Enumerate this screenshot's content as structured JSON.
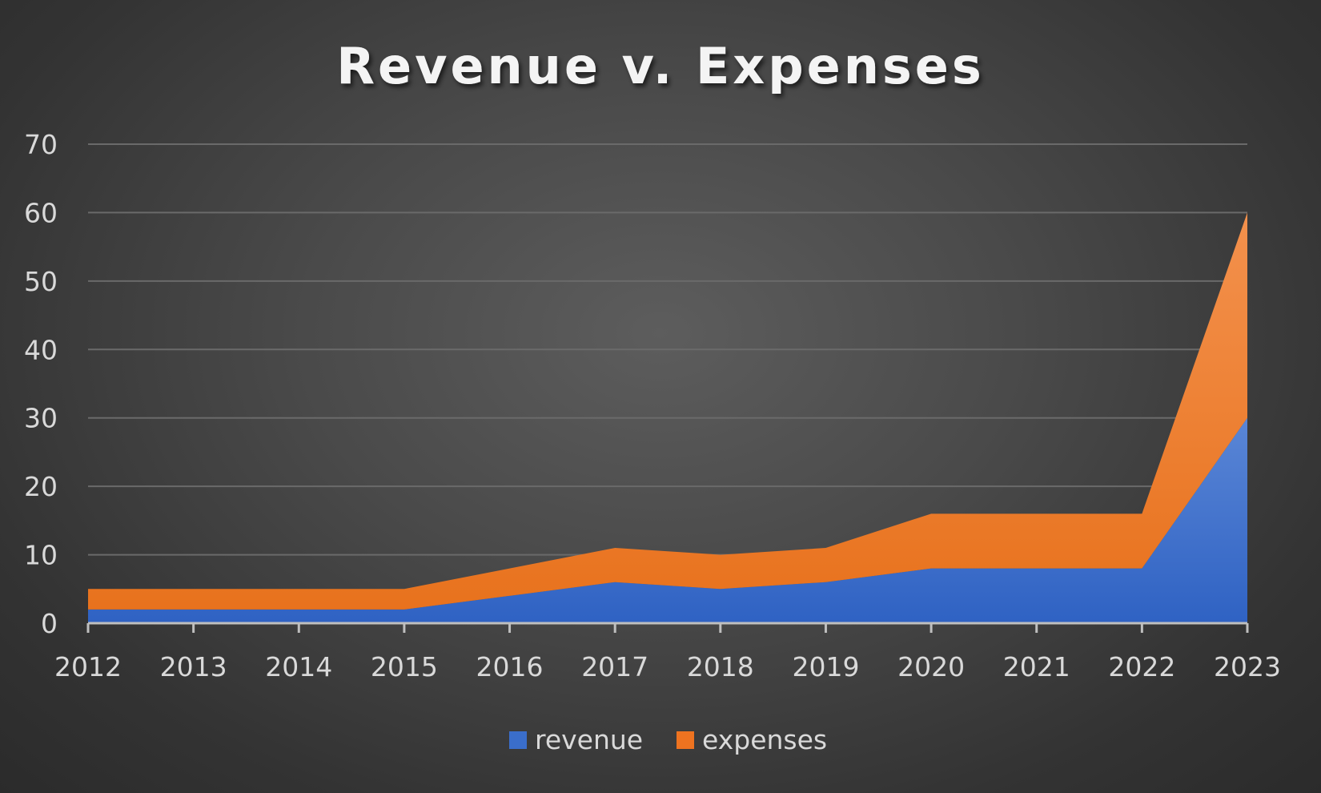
{
  "chart_data": {
    "type": "area",
    "stacked": true,
    "title": "Revenue v. Expenses",
    "xlabel": "",
    "ylabel": "",
    "categories": [
      "2012",
      "2013",
      "2014",
      "2015",
      "2016",
      "2017",
      "2018",
      "2019",
      "2020",
      "2021",
      "2022",
      "2023"
    ],
    "series": [
      {
        "name": "revenue",
        "color": "#3a6ecb",
        "values": [
          2,
          2,
          2,
          2,
          4,
          6,
          5,
          6,
          8,
          8,
          8,
          30
        ]
      },
      {
        "name": "expenses",
        "color": "#ee7320",
        "values": [
          3,
          3,
          3,
          3,
          4,
          5,
          5,
          5,
          8,
          8,
          8,
          30
        ]
      }
    ],
    "ylim": [
      0,
      70
    ],
    "yticks": [
      "0",
      "10",
      "20",
      "30",
      "40",
      "50",
      "60",
      "70"
    ],
    "grid": true,
    "legend": "bottom"
  }
}
